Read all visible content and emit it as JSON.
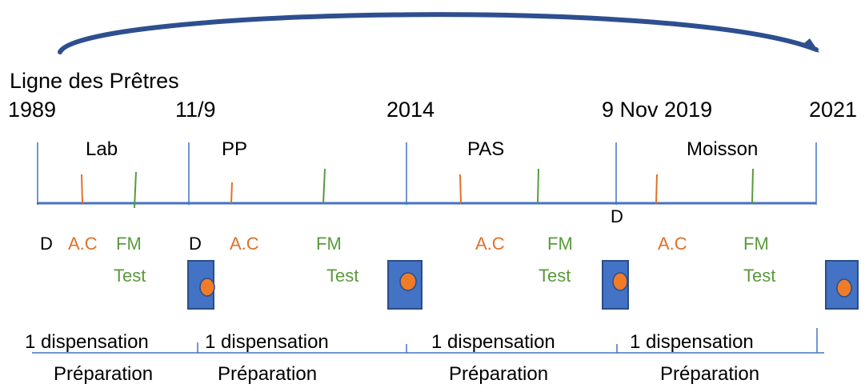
{
  "title": "Ligne des Prêtres",
  "dates": [
    "1989",
    "11/9",
    "2014",
    "9 Nov 2019",
    "2021"
  ],
  "periods": [
    "Lab",
    "PP",
    "PAS",
    "Moisson"
  ],
  "axis_marker": "D",
  "events": {
    "d": "D",
    "ac": "A.C",
    "fm": "FM",
    "test": "Test"
  },
  "bottom": {
    "dispensation": "1 dispensation",
    "preparation": "Préparation"
  },
  "colors": {
    "arc": "#2e4f8f",
    "timeline": "#4472c4",
    "ac": "#e0702a",
    "fm": "#5a9a3c",
    "box": "#4472c4",
    "dot": "#f07c27"
  }
}
